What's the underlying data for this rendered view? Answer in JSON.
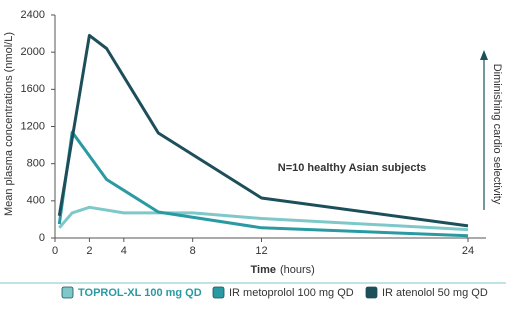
{
  "chart_data": {
    "type": "line",
    "y_label": "Mean plasma concentrations (nmol/L)",
    "x_label": "Time",
    "x_label_unit": "(hours)",
    "annotation": "N=10 healthy Asian subjects",
    "side_note": "Diminishing cardio selectivity",
    "xlim": [
      0,
      24
    ],
    "xticks": [
      0,
      2,
      4,
      8,
      12,
      24
    ],
    "ylim": [
      0,
      2400
    ],
    "yticks": [
      0,
      400,
      800,
      1200,
      1600,
      2000,
      2400
    ],
    "series": [
      {
        "name": "TOPROL-XL 100 mg QD",
        "color": "#7fc8c9",
        "x": [
          0.25,
          1,
          2,
          4,
          6,
          8,
          12,
          24
        ],
        "values": [
          110,
          270,
          330,
          270,
          270,
          270,
          210,
          90
        ]
      },
      {
        "name": "IR metoprolol 100 mg QD",
        "color": "#2a9aa2",
        "x": [
          0.25,
          1,
          3,
          6,
          12,
          24
        ],
        "values": [
          150,
          1140,
          630,
          280,
          110,
          25
        ]
      },
      {
        "name": "IR atenolol 50 mg QD",
        "color": "#1d4f5b",
        "x": [
          0.25,
          2,
          3,
          6,
          12,
          24
        ],
        "values": [
          240,
          2180,
          2040,
          1130,
          430,
          130
        ]
      }
    ]
  }
}
